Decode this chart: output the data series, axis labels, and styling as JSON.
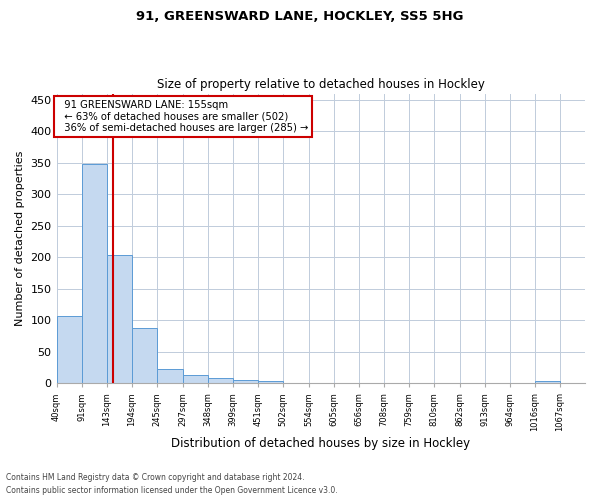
{
  "title_line1": "91, GREENSWARD LANE, HOCKLEY, SS5 5HG",
  "title_line2": "Size of property relative to detached houses in Hockley",
  "xlabel": "Distribution of detached houses by size in Hockley",
  "ylabel": "Number of detached properties",
  "bar_color": "#c5d9f0",
  "bar_edge_color": "#5b9bd5",
  "bins": [
    "40sqm",
    "91sqm",
    "143sqm",
    "194sqm",
    "245sqm",
    "297sqm",
    "348sqm",
    "399sqm",
    "451sqm",
    "502sqm",
    "554sqm",
    "605sqm",
    "656sqm",
    "708sqm",
    "759sqm",
    "810sqm",
    "862sqm",
    "913sqm",
    "964sqm",
    "1016sqm",
    "1067sqm"
  ],
  "values": [
    107,
    348,
    203,
    88,
    22,
    13,
    8,
    5,
    3,
    0,
    0,
    0,
    0,
    0,
    0,
    0,
    0,
    0,
    0,
    4,
    0
  ],
  "bin_edges": [
    40,
    91,
    143,
    194,
    245,
    297,
    348,
    399,
    451,
    502,
    554,
    605,
    656,
    708,
    759,
    810,
    862,
    913,
    964,
    1016,
    1067,
    1118
  ],
  "ylim": [
    0,
    460
  ],
  "yticks": [
    0,
    50,
    100,
    150,
    200,
    250,
    300,
    350,
    400,
    450
  ],
  "property_size": 155,
  "property_label": "91 GREENSWARD LANE: 155sqm",
  "pct_smaller": 63,
  "n_smaller": 502,
  "pct_larger_semi": 36,
  "n_larger_semi": 285,
  "red_line_color": "#cc0000",
  "annotation_box_edge": "#cc0000",
  "background_color": "#ffffff",
  "grid_color": "#c0ccdb",
  "footer_line1": "Contains HM Land Registry data © Crown copyright and database right 2024.",
  "footer_line2": "Contains public sector information licensed under the Open Government Licence v3.0."
}
